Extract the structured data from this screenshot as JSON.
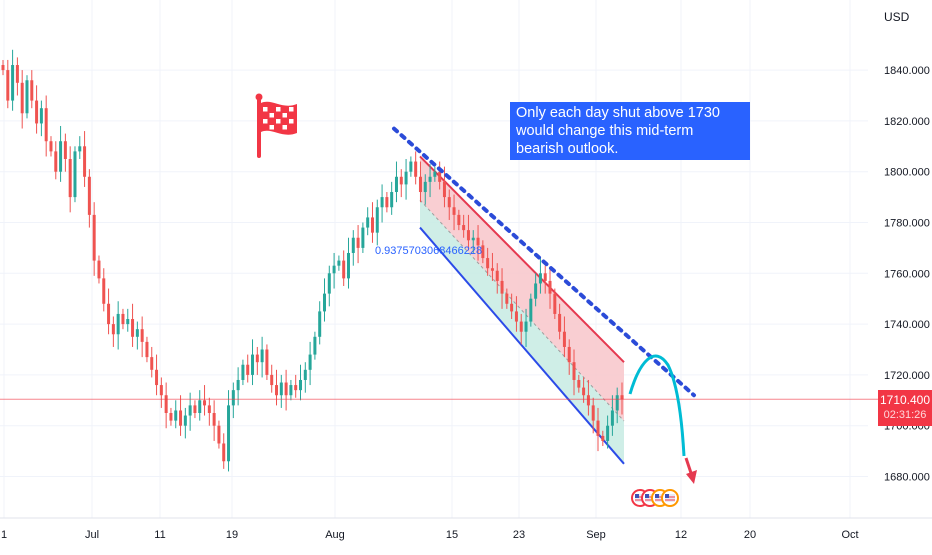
{
  "chart_data": {
    "type": "candlestick",
    "currency": "USD",
    "y_range": [
      1670,
      1860
    ],
    "y_ticks": [
      1680,
      1700,
      1720,
      1740,
      1760,
      1780,
      1800,
      1820,
      1840
    ],
    "y_tick_labels": [
      "1680.000",
      "1700.000",
      "1720.000",
      "1740.000",
      "1760.000",
      "1780.000",
      "1800.000",
      "1820.000",
      "1840.000"
    ],
    "x_tick_labels": [
      "1",
      "Jul",
      "11",
      "19",
      "Aug",
      "15",
      "23",
      "Sep",
      "12",
      "20",
      "Oct"
    ],
    "current_price": "1710.400",
    "countdown": "02:31:26",
    "annotation_text": "Only each day shut above 1730 would change this mid-term bearish outlook.",
    "channel_label": "0.9375703068466228",
    "close_path": [
      1840,
      1828,
      1842,
      1835,
      1823,
      1836,
      1828,
      1819,
      1825,
      1812,
      1808,
      1800,
      1812,
      1805,
      1790,
      1808,
      1810,
      1798,
      1783,
      1765,
      1758,
      1748,
      1740,
      1736,
      1744,
      1740,
      1742,
      1735,
      1738,
      1733,
      1727,
      1722,
      1716,
      1712,
      1705,
      1702,
      1706,
      1700,
      1704,
      1708,
      1705,
      1710,
      1708,
      1705,
      1700,
      1693,
      1686,
      1708,
      1714,
      1718,
      1724,
      1720,
      1728,
      1725,
      1730,
      1720,
      1716,
      1712,
      1717,
      1712,
      1716,
      1714,
      1718,
      1722,
      1728,
      1735,
      1745,
      1752,
      1760,
      1763,
      1765,
      1758,
      1768,
      1774,
      1770,
      1778,
      1782,
      1776,
      1786,
      1790,
      1786,
      1792,
      1798,
      1795,
      1800,
      1804,
      1798,
      1792,
      1796,
      1798,
      1800,
      1796,
      1790,
      1786,
      1783,
      1779,
      1777,
      1773,
      1774,
      1771,
      1766,
      1762,
      1761,
      1757,
      1752,
      1748,
      1745,
      1741,
      1737,
      1741,
      1750,
      1756,
      1760,
      1757,
      1752,
      1744,
      1737,
      1731,
      1725,
      1718,
      1715,
      1712,
      1708,
      1702,
      1696,
      1694,
      1700,
      1706,
      1712,
      1710.4
    ],
    "channel": {
      "upper_red_line": [
        [
          1806,
          "Aug 11"
        ],
        [
          1725,
          "Sep 4"
        ]
      ],
      "lower_blue_line": [
        [
          1778,
          "Aug 11"
        ],
        [
          1685,
          "Sep 4"
        ]
      ]
    },
    "dotted_trendline": [
      [
        1815,
        "Aug 9"
      ],
      [
        1712,
        "Sep 13"
      ]
    ]
  },
  "colors": {
    "up": "#26a69a",
    "down": "#ef5350",
    "annotation_bg": "#2962ff",
    "price_line": "#f23645",
    "channel_red_fill": "#f8c6ca",
    "channel_green_fill": "#c7ebe3",
    "projection": "#00bcd4"
  },
  "icons": [
    "checkered-flag-icon",
    "us-flag-event-icon"
  ]
}
